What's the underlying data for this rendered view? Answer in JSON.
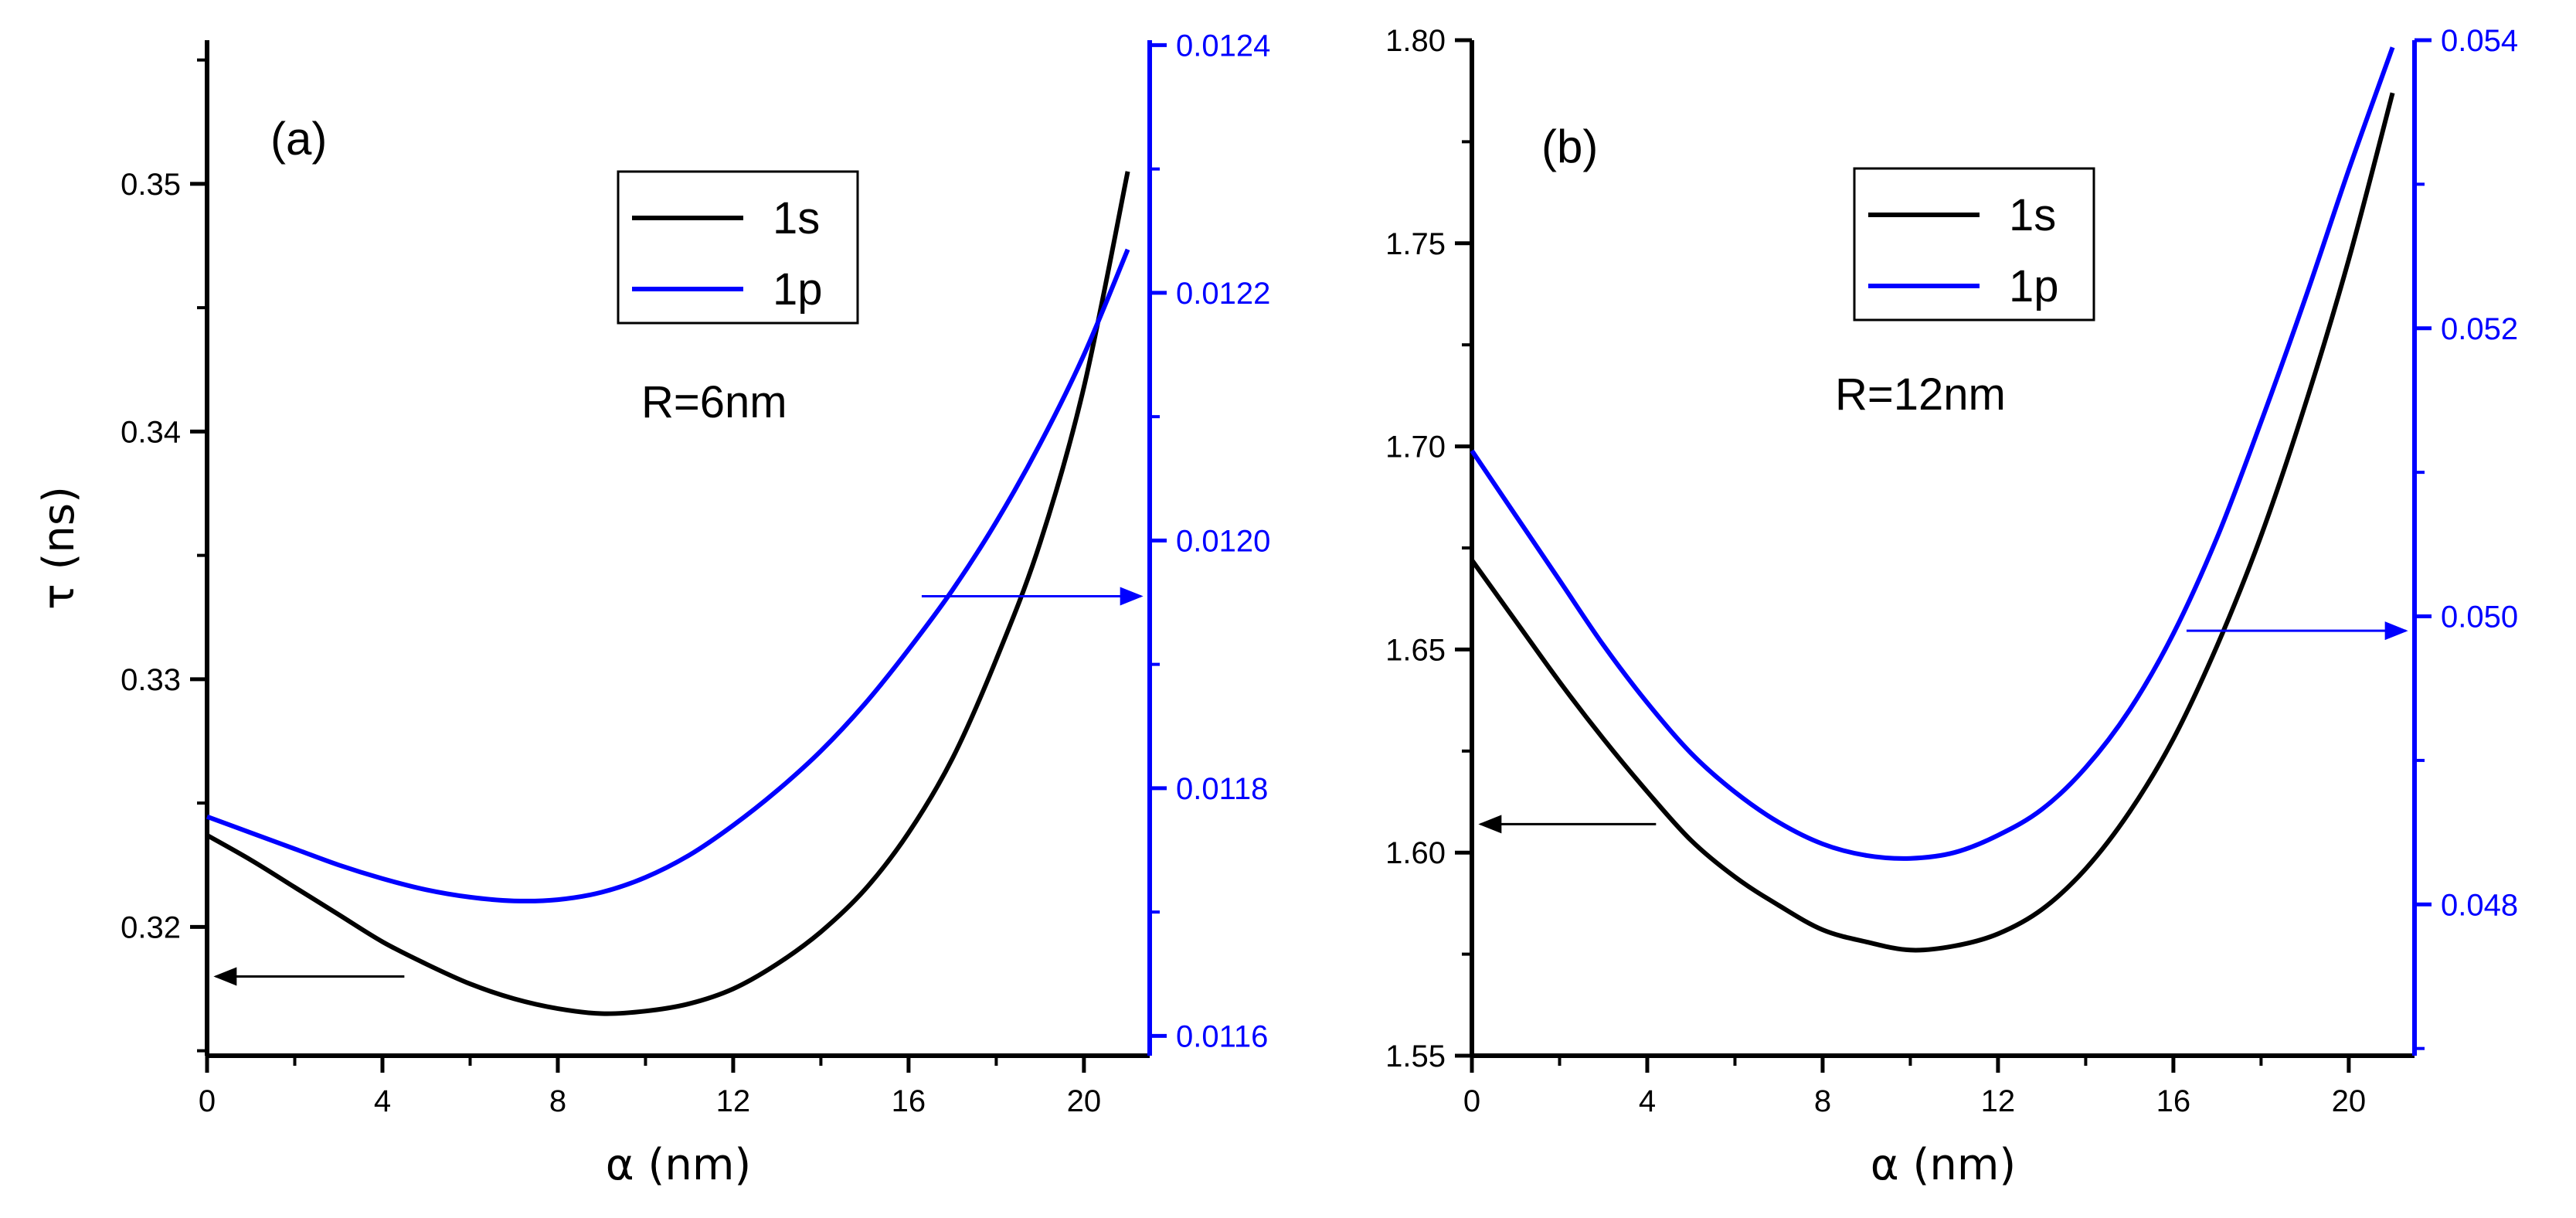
{
  "chart_data": [
    {
      "type": "line",
      "panel_label": "(a)",
      "annotation": "R=6nm",
      "xlabel": "α (nm)",
      "ylabel": "τ (ns)",
      "y2label": "",
      "xlim": [
        0,
        21.5
      ],
      "xticks": [
        0,
        4,
        8,
        12,
        16,
        20
      ],
      "xtick_labels": [
        "0",
        "4",
        "8",
        "12",
        "16",
        "20"
      ],
      "ylim": [
        0.3148,
        0.3558
      ],
      "yticks": [
        0.32,
        0.33,
        0.34,
        0.35
      ],
      "ytick_labels": [
        "0.32",
        "0.33",
        "0.34",
        "0.35"
      ],
      "y2lim": [
        0.011584,
        0.012404
      ],
      "y2ticks": [
        0.0116,
        0.0118,
        0.012,
        0.0122,
        0.0124
      ],
      "y2tick_labels": [
        "0.0116",
        "0.0118",
        "0.0120",
        "0.0122",
        "0.0124"
      ],
      "legend": [
        "1s",
        "1p"
      ],
      "legend_position": "upper-center",
      "series": [
        {
          "name": "1s",
          "axis": "left",
          "color": "#000000",
          "x": [
            0,
            1,
            2,
            3,
            4,
            5,
            6,
            7,
            8,
            9,
            10,
            11,
            12,
            13,
            14,
            15,
            16,
            17,
            18,
            19,
            20,
            21
          ],
          "values": [
            0.3237,
            0.3227,
            0.3216,
            0.3205,
            0.3194,
            0.3185,
            0.3177,
            0.3171,
            0.3167,
            0.3165,
            0.3166,
            0.3169,
            0.3175,
            0.3185,
            0.3198,
            0.3215,
            0.3238,
            0.3268,
            0.3308,
            0.3355,
            0.3418,
            0.3505
          ]
        },
        {
          "name": "1p",
          "axis": "right",
          "color": "#0000ff",
          "x": [
            0,
            1,
            2,
            3,
            4,
            5,
            6,
            7,
            8,
            9,
            10,
            11,
            12,
            13,
            14,
            15,
            16,
            17,
            18,
            19,
            20,
            21
          ],
          "values": [
            0.011777,
            0.011764,
            0.011751,
            0.011738,
            0.011727,
            0.011718,
            0.011712,
            0.011709,
            0.01171,
            0.011716,
            0.011728,
            0.011746,
            0.01177,
            0.011798,
            0.01183,
            0.011868,
            0.011912,
            0.01196,
            0.012015,
            0.012078,
            0.01215,
            0.012235
          ]
        }
      ],
      "arrows": [
        {
          "points_to": "left",
          "axis": "left",
          "y": 0.318,
          "x_from": 4.5,
          "x_to": 0.2
        },
        {
          "points_to": "right",
          "axis": "right",
          "y": 0.011955,
          "x_from": 16.3,
          "x_to": 21.3
        }
      ]
    },
    {
      "type": "line",
      "panel_label": "(b)",
      "annotation": "R=12nm",
      "xlabel": "α (nm)",
      "ylabel": "",
      "xlim": [
        0,
        21.5
      ],
      "xticks": [
        0,
        4,
        8,
        12,
        16,
        20
      ],
      "xtick_labels": [
        "0",
        "4",
        "8",
        "12",
        "16",
        "20"
      ],
      "ylim": [
        1.55,
        1.8
      ],
      "yticks": [
        1.55,
        1.6,
        1.65,
        1.7,
        1.75,
        1.8
      ],
      "ytick_labels": [
        "1.55",
        "1.60",
        "1.65",
        "1.70",
        "1.75",
        "1.80"
      ],
      "y2lim": [
        0.04695,
        0.054
      ],
      "y2ticks": [
        0.048,
        0.05,
        0.052,
        0.054
      ],
      "y2tick_labels": [
        "0.048",
        "0.050",
        "0.052",
        "0.054"
      ],
      "legend": [
        "1s",
        "1p"
      ],
      "legend_position": "upper-center",
      "series": [
        {
          "name": "1s",
          "axis": "left",
          "color": "#000000",
          "x": [
            0,
            1,
            2,
            3,
            4,
            5,
            6,
            7,
            8,
            9,
            10,
            11,
            12,
            13,
            14,
            15,
            16,
            17,
            18,
            19,
            20,
            21
          ],
          "values": [
            1.672,
            1.657,
            1.642,
            1.628,
            1.615,
            1.603,
            1.594,
            1.587,
            1.581,
            1.578,
            1.576,
            1.577,
            1.58,
            1.586,
            1.596,
            1.61,
            1.628,
            1.651,
            1.678,
            1.71,
            1.746,
            1.787
          ]
        },
        {
          "name": "1p",
          "axis": "right",
          "color": "#0000ff",
          "x": [
            0,
            1,
            2,
            3,
            4,
            5,
            6,
            7,
            8,
            9,
            10,
            11,
            12,
            13,
            14,
            15,
            16,
            17,
            18,
            19,
            20,
            21
          ],
          "values": [
            0.05115,
            0.0507,
            0.05025,
            0.0498,
            0.0494,
            0.04905,
            0.04878,
            0.04857,
            0.04842,
            0.04834,
            0.04832,
            0.04836,
            0.04848,
            0.04866,
            0.04895,
            0.04935,
            0.04988,
            0.05055,
            0.05135,
            0.0522,
            0.0531,
            0.05395
          ]
        }
      ],
      "arrows": [
        {
          "points_to": "left",
          "axis": "left",
          "y": 1.607,
          "x_from": 4.2,
          "x_to": 0.2
        },
        {
          "points_to": "right",
          "axis": "right",
          "y": 0.0499,
          "x_from": 16.3,
          "x_to": 21.3
        }
      ]
    }
  ]
}
